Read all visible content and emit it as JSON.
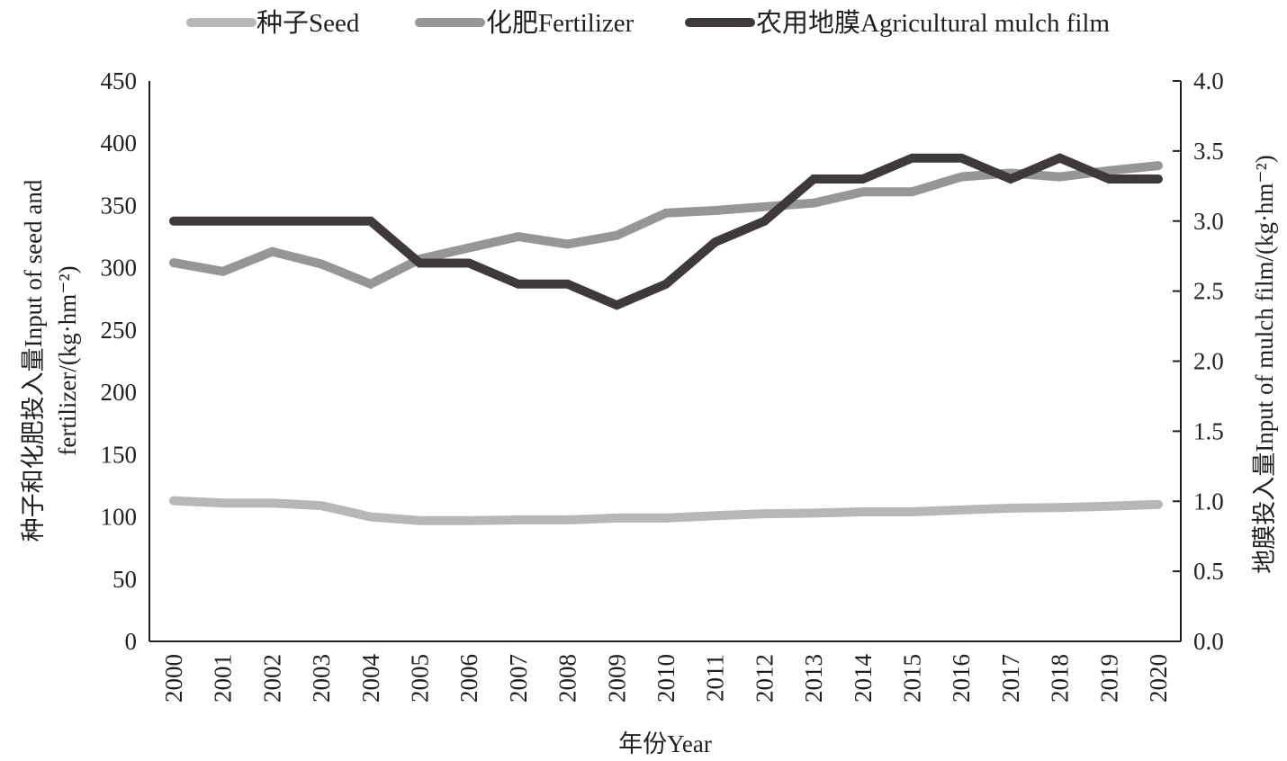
{
  "chart_data": {
    "type": "line",
    "title": "",
    "xlabel": "年份Year",
    "ylabel_left": "种子和化肥投入量Input of seed and fertilizer/(kg·hm⁻²)",
    "ylabel_left_lines": [
      "种子和化肥投入量Input of seed and",
      "fertilizer/(kg·hm⁻²)"
    ],
    "ylabel_right": "地膜投入量Input of mulch film/(kg·hm⁻²)",
    "ylim_left": [
      0,
      450
    ],
    "ylim_right": [
      0,
      4.0
    ],
    "yticks_left": [
      "0",
      "50",
      "100",
      "150",
      "200",
      "250",
      "300",
      "350",
      "400",
      "450"
    ],
    "yticks_right": [
      "0.0",
      "0.5",
      "1.0",
      "1.5",
      "2.0",
      "2.5",
      "3.0",
      "3.5",
      "4.0"
    ],
    "grid": false,
    "legend_position": "top",
    "categories": [
      "2000",
      "2001",
      "2002",
      "2003",
      "2004",
      "2005",
      "2006",
      "2007",
      "2008",
      "2009",
      "2010",
      "2011",
      "2012",
      "2013",
      "2014",
      "2015",
      "2016",
      "2017",
      "2018",
      "2019",
      "2020"
    ],
    "series": [
      {
        "name": "种子Seed",
        "axis": "left",
        "color": "#b8b6b6",
        "values": [
          113,
          111,
          111,
          109,
          100,
          97,
          97,
          97.5,
          97.5,
          99,
          99,
          101,
          102.5,
          103,
          104,
          104,
          105.5,
          107,
          107.5,
          108.5,
          110
        ]
      },
      {
        "name": "化肥Fertilizer",
        "axis": "left",
        "color": "#979595",
        "values": [
          304,
          297,
          313,
          303,
          287,
          307,
          316,
          325,
          319,
          326,
          344,
          346,
          349,
          352,
          361,
          361,
          373,
          376,
          373,
          378,
          382
        ]
      },
      {
        "name": "农用地膜Agricultural mulch film",
        "axis": "right",
        "color": "#3e3a3b",
        "values": [
          3.0,
          3.0,
          3.0,
          3.0,
          3.0,
          2.7,
          2.7,
          2.55,
          2.55,
          2.4,
          2.55,
          2.85,
          3.0,
          3.3,
          3.3,
          3.45,
          3.45,
          3.3,
          3.45,
          3.3,
          3.3
        ]
      }
    ]
  }
}
